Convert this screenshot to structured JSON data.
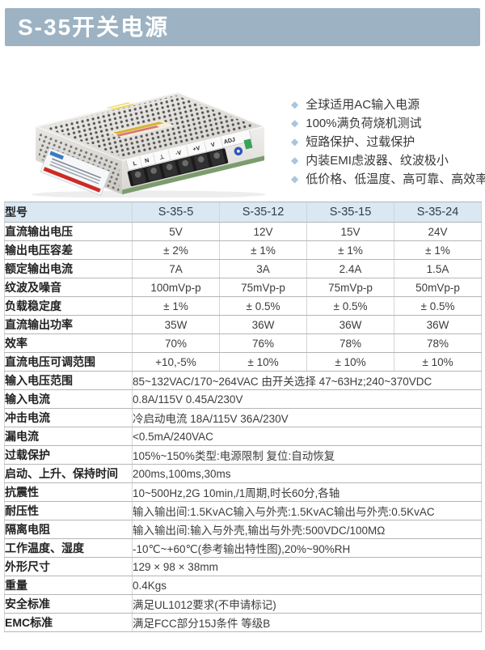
{
  "title": "S-35开关电源",
  "features": [
    "全球适用AC输入电源",
    "100%满负荷烧机测试",
    "短路保护、过载保护",
    "内装EMI虑波器、纹波极小",
    "低价格、低温度、高可靠、高效率"
  ],
  "product": {
    "description": "S-35 开关电源产品照片",
    "terminal_labels": [
      "L",
      "N",
      "⊥",
      "-V",
      "+V",
      "V",
      "ADJ"
    ]
  },
  "colors": {
    "title_bar_bg": "#9db3c3",
    "title_text": "#ffffff",
    "table_header_bg": "#d9e8f3",
    "bullet": "#a9c6de",
    "row_line": "#b2b6b9",
    "col_line": "#d2d5d8",
    "label_text": "#222222",
    "value_text": "#3c3c3c"
  },
  "table": {
    "header_label": "型号",
    "models": [
      "S-35-5",
      "S-35-12",
      "S-35-15",
      "S-35-24"
    ],
    "spec_rows": [
      {
        "label": "直流输出电压",
        "values": [
          "5V",
          "12V",
          "15V",
          "24V"
        ]
      },
      {
        "label": "输出电压容差",
        "values": [
          "± 2%",
          "± 1%",
          "± 1%",
          "± 1%"
        ]
      },
      {
        "label": "额定输出电流",
        "values": [
          "7A",
          "3A",
          "2.4A",
          "1.5A"
        ]
      },
      {
        "label": "纹波及噪音",
        "values": [
          "100mVp-p",
          "75mVp-p",
          "75mVp-p",
          "50mVp-p"
        ]
      },
      {
        "label": "负载稳定度",
        "values": [
          "± 1%",
          "± 0.5%",
          "± 0.5%",
          "± 0.5%"
        ]
      },
      {
        "label": "直流输出功率",
        "values": [
          "35W",
          "36W",
          "36W",
          "36W"
        ]
      },
      {
        "label": "效率",
        "values": [
          "70%",
          "76%",
          "78%",
          "78%"
        ]
      },
      {
        "label": "直流电压可调范围",
        "values": [
          "+10,-5%",
          "± 10%",
          "± 10%",
          "± 10%"
        ]
      }
    ],
    "full_rows": [
      {
        "label": "输入电压范围",
        "value": "85~132VAC/170~264VAC 由开关选择 47~63Hz;240~370VDC"
      },
      {
        "label": "输入电流",
        "value": "0.8A/115V 0.45A/230V"
      },
      {
        "label": "冲击电流",
        "value": "冷启动电流 18A/115V 36A/230V"
      },
      {
        "label": "漏电流",
        "value": "<0.5mA/240VAC"
      },
      {
        "label": "过载保护",
        "value": "105%~150%类型:电源限制 复位:自动恢复"
      },
      {
        "label": "启动、上升、保持时间",
        "value": "200ms,100ms,30ms"
      },
      {
        "label": "抗震性",
        "value": "10~500Hz,2G 10min,/1周期,时长60分,各轴"
      },
      {
        "label": "耐压性",
        "value": "输入输出间:1.5KvAC输入与外壳:1.5KvAC输出与外壳:0.5KvAC"
      },
      {
        "label": "隔离电阻",
        "value": "输入输出间:输入与外壳,输出与外壳:500VDC/100MΩ"
      },
      {
        "label": "工作温度、湿度",
        "value": "-10℃~+60℃(参考输出特性图),20%~90%RH"
      },
      {
        "label": "外形尺寸",
        "value": "129 × 98 × 38mm"
      },
      {
        "label": "重量",
        "value": "0.4Kgs"
      },
      {
        "label": "安全标准",
        "value": "满足UL1012要求(不申请标记)"
      },
      {
        "label": "EMC标准",
        "value": "满足FCC部分15J条件 等级B"
      }
    ]
  }
}
